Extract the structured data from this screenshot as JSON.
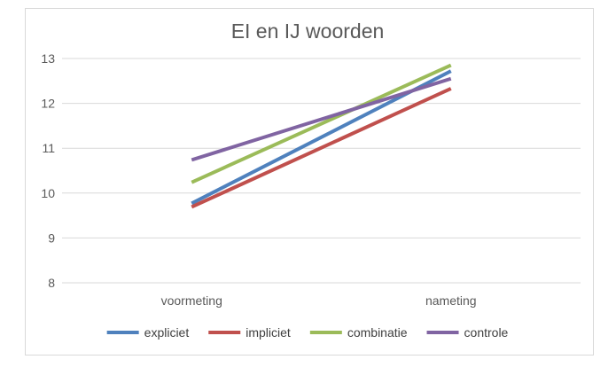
{
  "chart_data": {
    "type": "line",
    "title": "EI en IJ woorden",
    "xlabel": "",
    "ylabel": "",
    "categories": [
      "voormeting",
      "nameting"
    ],
    "ylim": [
      8,
      13
    ],
    "yticks": [
      "8",
      "9",
      "10",
      "11",
      "12",
      "13"
    ],
    "grid": true,
    "legend_position": "bottom",
    "series": [
      {
        "name": "expliciet",
        "values": [
          9.77,
          12.72
        ],
        "color": "#4f81bd"
      },
      {
        "name": "impliciet",
        "values": [
          9.69,
          12.33
        ],
        "color": "#c0504d"
      },
      {
        "name": "combinatie",
        "values": [
          10.24,
          12.85
        ],
        "color": "#9bbb59"
      },
      {
        "name": "controle",
        "values": [
          10.74,
          12.55
        ],
        "color": "#8064a2"
      }
    ]
  }
}
